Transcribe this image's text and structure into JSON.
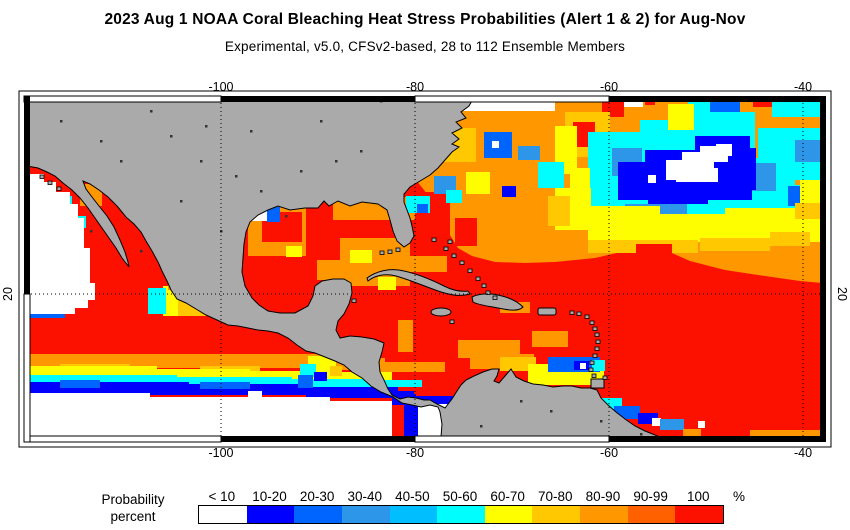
{
  "title": "2023 Aug 1 NOAA Coral Bleaching Heat Stress Probabilities (Alert 1 & 2) for Aug-Nov",
  "subtitle": "Experimental, v5.0, CFSv2-based, 28 to 112 Ensemble Members",
  "map": {
    "x_tick_labels": [
      "-100",
      "-80",
      "-60",
      "-40"
    ],
    "y_tick_label": "20"
  },
  "legend": {
    "title_line1": "Probability",
    "title_line2": "percent",
    "unit": "%",
    "bins": [
      {
        "label": "< 10",
        "color": "#FFFFFF"
      },
      {
        "label": "10-20",
        "color": "#0000FE"
      },
      {
        "label": "20-30",
        "color": "#0064FF"
      },
      {
        "label": "30-40",
        "color": "#2E96E8"
      },
      {
        "label": "40-50",
        "color": "#00BEFF"
      },
      {
        "label": "50-60",
        "color": "#00FEFE"
      },
      {
        "label": "60-70",
        "color": "#FEFE00"
      },
      {
        "label": "70-80",
        "color": "#FFC800"
      },
      {
        "label": "80-90",
        "color": "#FF9800"
      },
      {
        "label": "90-99",
        "color": "#FF6000"
      },
      {
        "label": "100",
        "color": "#FC1000"
      }
    ]
  },
  "colors": {
    "land": "#AAAAAA",
    "coastline": "#000000",
    "frame": "#000000",
    "background": "#FFFFFF"
  }
}
